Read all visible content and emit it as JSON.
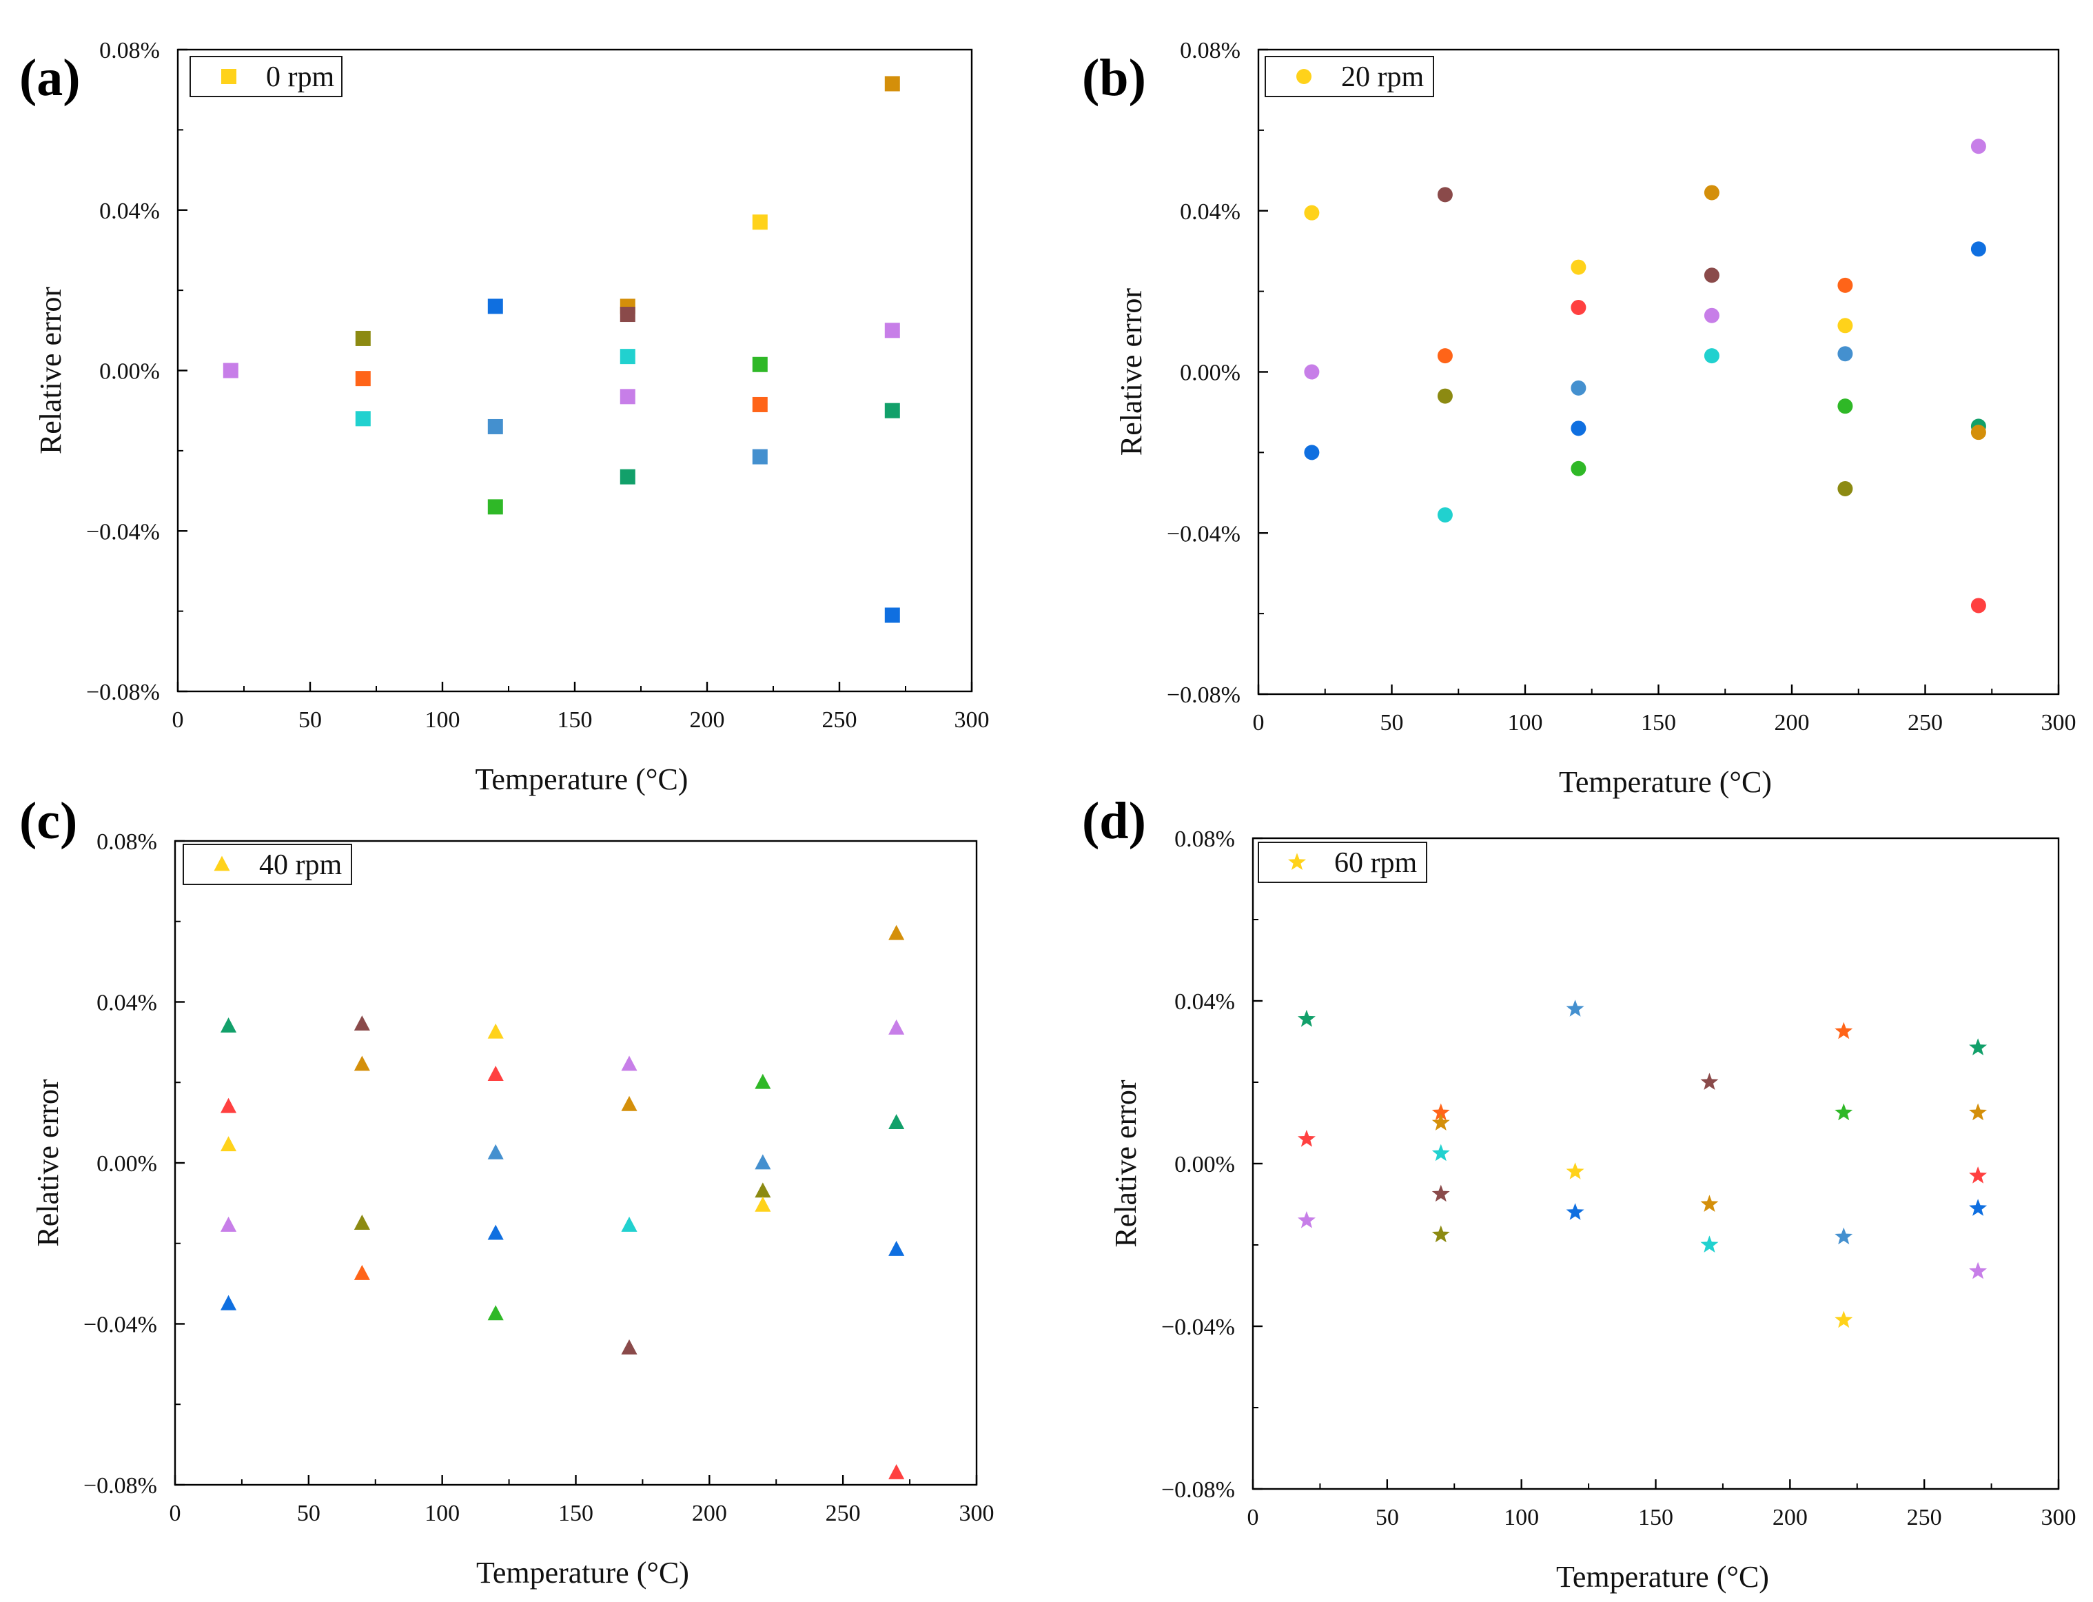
{
  "figure": {
    "unit_suffix": "%"
  },
  "chart_data": [
    {
      "type": "scatter",
      "panel_label": "(a)",
      "marker": "square",
      "legend": "0 rpm",
      "xlabel": "Temperature (°C)",
      "ylabel": "Relative error",
      "xlim": [
        0,
        300
      ],
      "ylim": [
        -0.08,
        0.08
      ],
      "xticks": [
        0,
        50,
        100,
        150,
        200,
        250,
        300
      ],
      "yticks": [
        -0.08,
        -0.04,
        0.0,
        0.04,
        0.08
      ],
      "ytick_labels": [
        "−0.08%",
        "−0.04%",
        "0.00%",
        "0.04%",
        "0.08%"
      ],
      "points": [
        {
          "x": 20,
          "y": 0.0,
          "color": "#c77ee8"
        },
        {
          "x": 70,
          "y": 0.008,
          "color": "#8c8a12"
        },
        {
          "x": 70,
          "y": -0.002,
          "color": "#ff6418"
        },
        {
          "x": 70,
          "y": -0.012,
          "color": "#21d1cf"
        },
        {
          "x": 120,
          "y": 0.016,
          "color": "#0f6fe0"
        },
        {
          "x": 120,
          "y": -0.014,
          "color": "#4490cf"
        },
        {
          "x": 120,
          "y": -0.034,
          "color": "#2fb827"
        },
        {
          "x": 170,
          "y": 0.016,
          "color": "#d48f0a"
        },
        {
          "x": 170,
          "y": 0.014,
          "color": "#8a4a4a"
        },
        {
          "x": 170,
          "y": 0.0035,
          "color": "#21d1cf"
        },
        {
          "x": 170,
          "y": -0.0065,
          "color": "#c77ee8"
        },
        {
          "x": 170,
          "y": -0.0265,
          "color": "#12a06a"
        },
        {
          "x": 220,
          "y": 0.037,
          "color": "#ffd21a"
        },
        {
          "x": 220,
          "y": 0.0015,
          "color": "#2fb827"
        },
        {
          "x": 220,
          "y": -0.0085,
          "color": "#ff6418"
        },
        {
          "x": 220,
          "y": -0.0215,
          "color": "#4490cf"
        },
        {
          "x": 270,
          "y": 0.0715,
          "color": "#d48f0a"
        },
        {
          "x": 270,
          "y": 0.01,
          "color": "#c77ee8"
        },
        {
          "x": 270,
          "y": -0.01,
          "color": "#12a06a"
        },
        {
          "x": 270,
          "y": -0.061,
          "color": "#0f6fe0"
        }
      ]
    },
    {
      "type": "scatter",
      "panel_label": "(b)",
      "marker": "circle",
      "legend": "20 rpm",
      "xlabel": "Temperature (°C)",
      "ylabel": "Relative error",
      "xlim": [
        0,
        300
      ],
      "ylim": [
        -0.08,
        0.08
      ],
      "xticks": [
        0,
        50,
        100,
        150,
        200,
        250,
        300
      ],
      "yticks": [
        -0.08,
        -0.04,
        0.0,
        0.04,
        0.08
      ],
      "ytick_labels": [
        "−0.08%",
        "−0.04%",
        "0.00%",
        "0.04%",
        "0.08%"
      ],
      "points": [
        {
          "x": 20,
          "y": 0.0395,
          "color": "#ffd21a"
        },
        {
          "x": 20,
          "y": 0.0,
          "color": "#c77ee8"
        },
        {
          "x": 20,
          "y": -0.02,
          "color": "#0f6fe0"
        },
        {
          "x": 70,
          "y": 0.044,
          "color": "#8a4a4a"
        },
        {
          "x": 70,
          "y": 0.004,
          "color": "#ff6418"
        },
        {
          "x": 70,
          "y": -0.006,
          "color": "#8c8a12"
        },
        {
          "x": 70,
          "y": -0.0355,
          "color": "#21d1cf"
        },
        {
          "x": 120,
          "y": 0.026,
          "color": "#ffd21a"
        },
        {
          "x": 120,
          "y": 0.016,
          "color": "#ff4040"
        },
        {
          "x": 120,
          "y": -0.004,
          "color": "#4490cf"
        },
        {
          "x": 120,
          "y": -0.014,
          "color": "#0f6fe0"
        },
        {
          "x": 120,
          "y": -0.024,
          "color": "#2fb827"
        },
        {
          "x": 170,
          "y": 0.0445,
          "color": "#d48f0a"
        },
        {
          "x": 170,
          "y": 0.024,
          "color": "#8a4a4a"
        },
        {
          "x": 170,
          "y": 0.014,
          "color": "#c77ee8"
        },
        {
          "x": 170,
          "y": 0.004,
          "color": "#21d1cf"
        },
        {
          "x": 220,
          "y": 0.0215,
          "color": "#ff6418"
        },
        {
          "x": 220,
          "y": 0.0115,
          "color": "#ffd21a"
        },
        {
          "x": 220,
          "y": 0.0045,
          "color": "#4490cf"
        },
        {
          "x": 220,
          "y": -0.0085,
          "color": "#2fb827"
        },
        {
          "x": 220,
          "y": -0.029,
          "color": "#8c8a12"
        },
        {
          "x": 270,
          "y": 0.056,
          "color": "#c77ee8"
        },
        {
          "x": 270,
          "y": 0.0305,
          "color": "#0f6fe0"
        },
        {
          "x": 270,
          "y": -0.0135,
          "color": "#12a06a"
        },
        {
          "x": 270,
          "y": -0.015,
          "color": "#d48f0a"
        },
        {
          "x": 270,
          "y": -0.058,
          "color": "#ff4040"
        }
      ]
    },
    {
      "type": "scatter",
      "panel_label": "(c)",
      "marker": "triangle",
      "legend": "40 rpm",
      "xlabel": "Temperature (°C)",
      "ylabel": "Relative error",
      "xlim": [
        0,
        300
      ],
      "ylim": [
        -0.08,
        0.08
      ],
      "xticks": [
        0,
        50,
        100,
        150,
        200,
        250,
        300
      ],
      "yticks": [
        -0.08,
        -0.04,
        0.0,
        0.04,
        0.08
      ],
      "ytick_labels": [
        "−0.08%",
        "−0.04%",
        "0.00%",
        "0.04%",
        "0.08%"
      ],
      "points": [
        {
          "x": 20,
          "y": 0.034,
          "color": "#12a06a"
        },
        {
          "x": 20,
          "y": 0.014,
          "color": "#ff4040"
        },
        {
          "x": 20,
          "y": 0.0045,
          "color": "#ffd21a"
        },
        {
          "x": 20,
          "y": -0.0155,
          "color": "#c77ee8"
        },
        {
          "x": 20,
          "y": -0.035,
          "color": "#0f6fe0"
        },
        {
          "x": 70,
          "y": 0.0345,
          "color": "#8a4a4a"
        },
        {
          "x": 70,
          "y": 0.0245,
          "color": "#d48f0a"
        },
        {
          "x": 70,
          "y": -0.015,
          "color": "#8c8a12"
        },
        {
          "x": 70,
          "y": -0.0275,
          "color": "#ff6418"
        },
        {
          "x": 120,
          "y": 0.0325,
          "color": "#ffd21a"
        },
        {
          "x": 120,
          "y": 0.022,
          "color": "#ff4040"
        },
        {
          "x": 120,
          "y": 0.0025,
          "color": "#4490cf"
        },
        {
          "x": 120,
          "y": -0.0175,
          "color": "#0f6fe0"
        },
        {
          "x": 120,
          "y": -0.0375,
          "color": "#2fb827"
        },
        {
          "x": 170,
          "y": 0.0245,
          "color": "#c77ee8"
        },
        {
          "x": 170,
          "y": 0.0145,
          "color": "#d48f0a"
        },
        {
          "x": 170,
          "y": -0.0155,
          "color": "#21d1cf"
        },
        {
          "x": 170,
          "y": -0.046,
          "color": "#8a4a4a"
        },
        {
          "x": 220,
          "y": 0.02,
          "color": "#2fb827"
        },
        {
          "x": 220,
          "y": 0.0,
          "color": "#4490cf"
        },
        {
          "x": 220,
          "y": -0.007,
          "color": "#8c8a12"
        },
        {
          "x": 220,
          "y": -0.0105,
          "color": "#ffd21a"
        },
        {
          "x": 270,
          "y": 0.057,
          "color": "#d48f0a"
        },
        {
          "x": 270,
          "y": 0.0335,
          "color": "#c77ee8"
        },
        {
          "x": 270,
          "y": 0.01,
          "color": "#12a06a"
        },
        {
          "x": 270,
          "y": -0.0215,
          "color": "#0f6fe0"
        },
        {
          "x": 270,
          "y": -0.077,
          "color": "#ff4040"
        }
      ]
    },
    {
      "type": "scatter",
      "panel_label": "(d)",
      "marker": "star",
      "legend": "60 rpm",
      "xlabel": "Temperature (°C)",
      "ylabel": "Relative error",
      "xlim": [
        0,
        300
      ],
      "ylim": [
        -0.08,
        0.08
      ],
      "xticks": [
        0,
        50,
        100,
        150,
        200,
        250,
        300
      ],
      "yticks": [
        -0.08,
        -0.04,
        0.0,
        0.04,
        0.08
      ],
      "ytick_labels": [
        "−0.08%",
        "−0.04%",
        "0.00%",
        "0.04%",
        "0.08%"
      ],
      "points": [
        {
          "x": 20,
          "y": 0.0355,
          "color": "#12a06a"
        },
        {
          "x": 20,
          "y": 0.006,
          "color": "#ff4040"
        },
        {
          "x": 20,
          "y": -0.014,
          "color": "#c77ee8"
        },
        {
          "x": 70,
          "y": 0.0125,
          "color": "#ff6418"
        },
        {
          "x": 70,
          "y": 0.01,
          "color": "#d48f0a"
        },
        {
          "x": 70,
          "y": 0.0025,
          "color": "#21d1cf"
        },
        {
          "x": 70,
          "y": -0.0075,
          "color": "#8a4a4a"
        },
        {
          "x": 70,
          "y": -0.0175,
          "color": "#8c8a12"
        },
        {
          "x": 120,
          "y": 0.038,
          "color": "#4490cf"
        },
        {
          "x": 120,
          "y": -0.002,
          "color": "#ffd21a"
        },
        {
          "x": 120,
          "y": -0.012,
          "color": "#0f6fe0"
        },
        {
          "x": 170,
          "y": 0.02,
          "color": "#8a4a4a"
        },
        {
          "x": 170,
          "y": -0.01,
          "color": "#d48f0a"
        },
        {
          "x": 170,
          "y": -0.02,
          "color": "#21d1cf"
        },
        {
          "x": 220,
          "y": 0.0325,
          "color": "#ff6418"
        },
        {
          "x": 220,
          "y": 0.0125,
          "color": "#2fb827"
        },
        {
          "x": 220,
          "y": -0.018,
          "color": "#4490cf"
        },
        {
          "x": 220,
          "y": -0.0385,
          "color": "#ffd21a"
        },
        {
          "x": 270,
          "y": 0.0285,
          "color": "#12a06a"
        },
        {
          "x": 270,
          "y": 0.0125,
          "color": "#d48f0a"
        },
        {
          "x": 270,
          "y": -0.003,
          "color": "#ff4040"
        },
        {
          "x": 270,
          "y": -0.011,
          "color": "#0f6fe0"
        },
        {
          "x": 270,
          "y": -0.0265,
          "color": "#c77ee8"
        }
      ]
    }
  ],
  "legend_marker_color": "#ffd21a"
}
